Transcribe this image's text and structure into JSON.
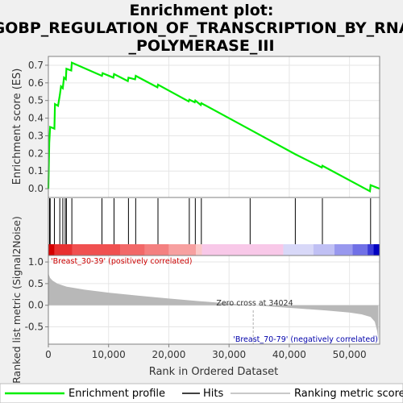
{
  "title_lines": [
    "Enrichment plot:",
    "GOBP_REGULATION_OF_TRANSCRIPTION_BY_RNA",
    "_POLYMERASE_III"
  ],
  "colors": {
    "es_line": "#00ee00",
    "hits": "#000000",
    "metric_fill": "#b8b8b8",
    "pos_label": "#cc0000",
    "neg_label": "#0000aa",
    "zero_line": "#c8c8c8"
  },
  "chart_data": [
    {
      "type": "line",
      "name": "enrichment-score",
      "ylabel": "Enrichment score (ES)",
      "xlim": [
        0,
        55000
      ],
      "ylim": [
        -0.05,
        0.75
      ],
      "yticks": [
        0.0,
        0.1,
        0.2,
        0.3,
        0.4,
        0.5,
        0.6,
        0.7
      ],
      "ytick_labels": [
        "0.0",
        "0.1",
        "0.2",
        "0.3",
        "0.4",
        "0.5",
        "0.6",
        "0.7"
      ],
      "grid": true,
      "x": [
        0,
        150,
        300,
        700,
        1000,
        1100,
        1600,
        1900,
        2100,
        2400,
        2600,
        2900,
        3000,
        3800,
        3900,
        8900,
        9000,
        10800,
        10900,
        13200,
        13300,
        14400,
        14500,
        18100,
        18200,
        23300,
        23400,
        24300,
        24400,
        25300,
        25400,
        33500,
        41000,
        45400,
        45500,
        53400,
        53500,
        55000
      ],
      "y": [
        0.0,
        0.26,
        0.35,
        0.345,
        0.34,
        0.48,
        0.47,
        0.53,
        0.58,
        0.57,
        0.63,
        0.62,
        0.68,
        0.67,
        0.715,
        0.64,
        0.655,
        0.63,
        0.65,
        0.61,
        0.63,
        0.62,
        0.64,
        0.575,
        0.59,
        0.495,
        0.505,
        0.49,
        0.5,
        0.475,
        0.485,
        0.335,
        0.195,
        0.12,
        0.13,
        -0.015,
        0.02,
        0.0
      ]
    },
    {
      "type": "scatter",
      "name": "hits",
      "x": [
        200,
        300,
        1000,
        1900,
        2400,
        2800,
        3000,
        3900,
        8900,
        10900,
        13300,
        14500,
        18200,
        23400,
        24400,
        25400,
        33500,
        41000,
        45500,
        53500
      ]
    },
    {
      "type": "area",
      "name": "ranked-list-metric",
      "xlabel": "Rank in Ordered Dataset",
      "ylabel": "Ranked list metric (Signal2Noise)",
      "xlim": [
        0,
        55000
      ],
      "ylim": [
        -0.9,
        1.15
      ],
      "xticks": [
        0,
        10000,
        20000,
        30000,
        40000,
        50000
      ],
      "xtick_labels": [
        "0",
        "10,000",
        "20,000",
        "30,000",
        "40,000",
        "50,000"
      ],
      "yticks": [
        -0.5,
        0.0,
        0.5,
        1.0
      ],
      "ytick_labels": [
        "-0.5",
        "0.0",
        "0.5",
        "1.0"
      ],
      "x": [
        0,
        100,
        300,
        700,
        1500,
        3000,
        6000,
        10000,
        15000,
        20000,
        25000,
        30000,
        34024,
        38000,
        42000,
        46000,
        50000,
        52000,
        53500,
        54200,
        54600,
        54800
      ],
      "y": [
        0.78,
        0.7,
        0.63,
        0.57,
        0.5,
        0.43,
        0.36,
        0.29,
        0.22,
        0.155,
        0.095,
        0.04,
        0.0,
        -0.04,
        -0.08,
        -0.12,
        -0.17,
        -0.21,
        -0.27,
        -0.38,
        -0.6,
        -0.82
      ]
    }
  ],
  "annotations": {
    "positive": "'Breast_30-39' (positively correlated)",
    "negative": "'Breast_70-79' (negatively correlated)",
    "zero_cross": "Zero cross at 34024",
    "zero_cross_x": 34024
  },
  "legend": {
    "items": [
      "Enrichment profile",
      "Hits",
      "Ranking metric scores"
    ]
  }
}
